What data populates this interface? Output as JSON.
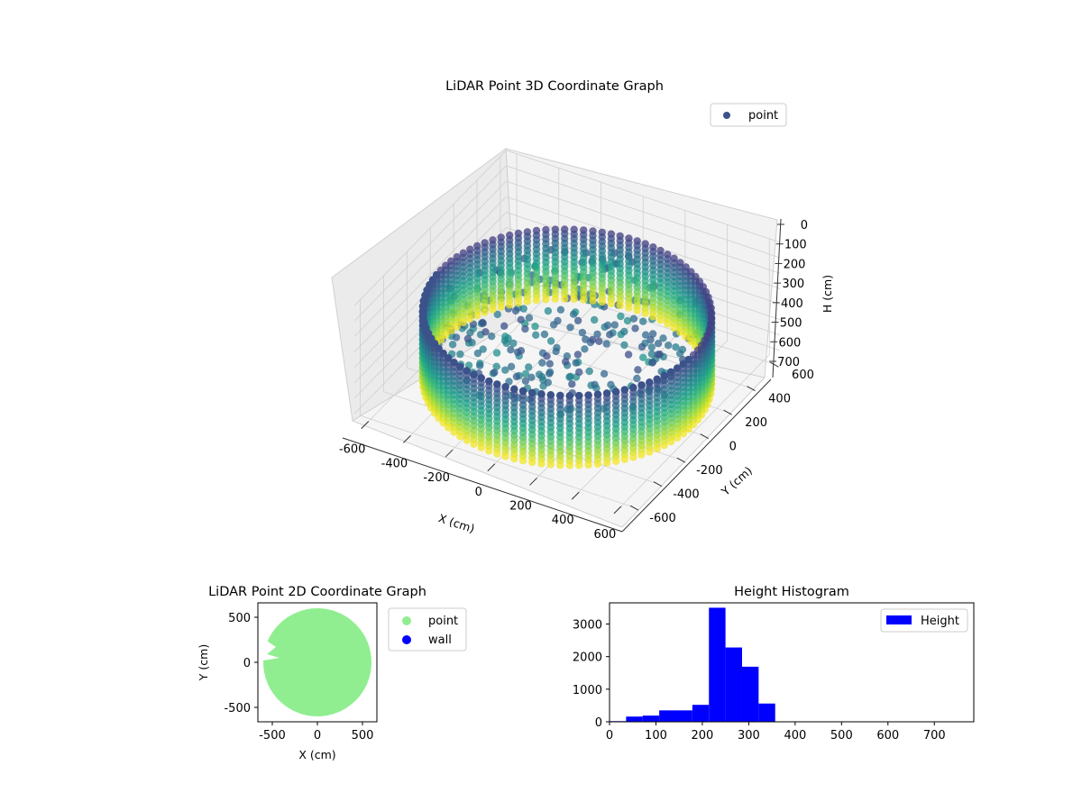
{
  "chart_data": [
    {
      "type": "scatter3d",
      "title": "LiDAR Point 3D Coordinate Graph",
      "xlabel": "X (cm)",
      "ylabel": "Y (cm)",
      "zlabel": "H (cm)",
      "x_ticks": [
        -600,
        -400,
        -200,
        0,
        200,
        400,
        600
      ],
      "y_ticks": [
        -600,
        -400,
        -200,
        0,
        200,
        400,
        600
      ],
      "z_ticks": [
        0,
        100,
        200,
        300,
        400,
        500,
        600,
        700
      ],
      "xlim": [
        -650,
        650
      ],
      "ylim": [
        -650,
        650
      ],
      "zlim": [
        0,
        750
      ],
      "z_inverted": true,
      "legend": {
        "entries": [
          "point"
        ],
        "placement": "top-right"
      },
      "colormap": "viridis",
      "ring": {
        "radius": 600,
        "h_min": 0,
        "h_max": 700,
        "columns": 96
      }
    },
    {
      "type": "scatter",
      "title": "LiDAR Point 2D Coordinate Graph",
      "xlabel": "X (cm)",
      "ylabel": "Y (cm)",
      "x_ticks": [
        -500,
        0,
        500
      ],
      "y_ticks": [
        -500,
        0,
        500
      ],
      "xlim": [
        -660,
        660
      ],
      "ylim": [
        -660,
        660
      ],
      "legend": {
        "entries": [
          "point",
          "wall"
        ],
        "placement": "outside-right"
      },
      "series": [
        {
          "name": "point",
          "color": "#90ee90",
          "shape": "disk",
          "radius": 600
        },
        {
          "name": "wall",
          "color": "#0000ff",
          "values": []
        }
      ]
    },
    {
      "type": "bar",
      "title": "Height Histogram",
      "xlabel": "",
      "ylabel": "",
      "x_ticks": [
        0,
        100,
        200,
        300,
        400,
        500,
        600,
        700
      ],
      "y_ticks": [
        0,
        1000,
        2000,
        3000
      ],
      "xlim": [
        0,
        785
      ],
      "ylim": [
        0,
        3650
      ],
      "bin_width": 35.7,
      "bin_start": 0,
      "values": [
        20,
        160,
        190,
        350,
        350,
        520,
        3500,
        2280,
        1690,
        560,
        5,
        5,
        5,
        3,
        3,
        3,
        2,
        2,
        2,
        2,
        1,
        1
      ],
      "color": "#0000ff",
      "legend": {
        "entries": [
          "Height"
        ],
        "placement": "top-right"
      }
    }
  ]
}
